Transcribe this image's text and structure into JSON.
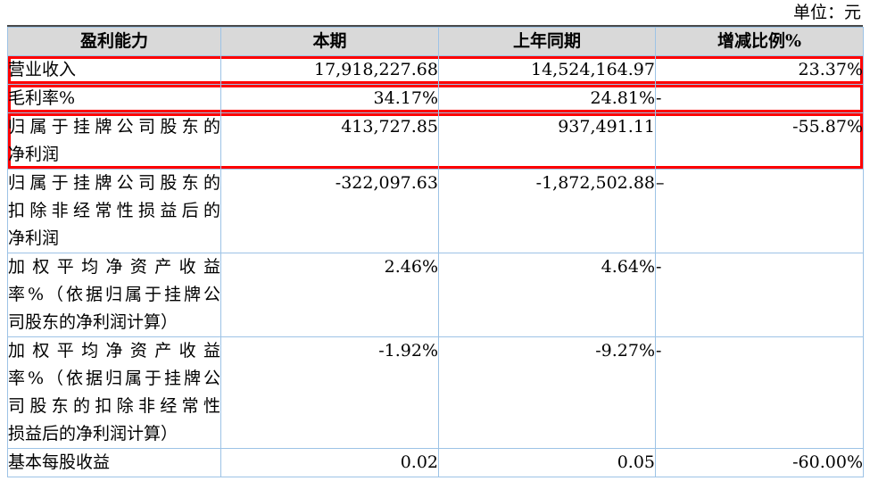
{
  "unit_label": "单位：元",
  "colors": {
    "table_border": "#9DC3E6",
    "header_background": "#D9D9D9",
    "annotation_highlight": "#FF0000",
    "table_top_rule": "#4A4A4A",
    "text": "#000000"
  },
  "table": {
    "headers": [
      "盈利能力",
      "本期",
      "上年同期",
      "增减比例%"
    ],
    "rows": [
      {
        "label": "营业收入",
        "label_lines": [
          "营业收入"
        ],
        "current": "17,918,227.68",
        "prior": "14,524,164.97",
        "change": "23.37%",
        "highlighted": true
      },
      {
        "label": "毛利率%",
        "label_lines": [
          "毛利率%"
        ],
        "current": "34.17%",
        "prior": "24.81%",
        "change": "-",
        "highlighted": true
      },
      {
        "label": "归属于挂牌公司股东的净利润",
        "label_lines": [
          "归属于挂牌公司股东的",
          "净利润"
        ],
        "current": "413,727.85",
        "prior": "937,491.11",
        "change": "-55.87%",
        "highlighted": true
      },
      {
        "label": "归属于挂牌公司股东的扣除非经常性损益后的净利润",
        "label_lines": [
          "归属于挂牌公司股东的",
          "扣除非经常性损益后的",
          "净利润"
        ],
        "current": "-322,097.63",
        "prior": "-1,872,502.88",
        "change": "–",
        "highlighted": false
      },
      {
        "label": "加权平均净资产收益率%（依据归属于挂牌公司股东的净利润计算）",
        "label_lines": [
          "加权平均净资产收益",
          "率%（依据归属于挂牌公",
          "司股东的净利润计算）"
        ],
        "current": "2.46%",
        "prior": "4.64%",
        "change": "-",
        "highlighted": false
      },
      {
        "label": "加权平均净资产收益率%（依据归属于挂牌公司股东的扣除非经常性损益后的净利润计算）",
        "label_lines": [
          "加权平均净资产收益",
          "率%（依据归属于挂牌公",
          "司股东的扣除非经常性",
          "损益后的净利润计算）"
        ],
        "current": "-1.92%",
        "prior": "-9.27%",
        "change": "-",
        "highlighted": false
      },
      {
        "label": "基本每股收益",
        "label_lines": [
          "基本每股收益"
        ],
        "current": "0.02",
        "prior": "0.05",
        "change": "-60.00%",
        "highlighted": false
      }
    ]
  }
}
